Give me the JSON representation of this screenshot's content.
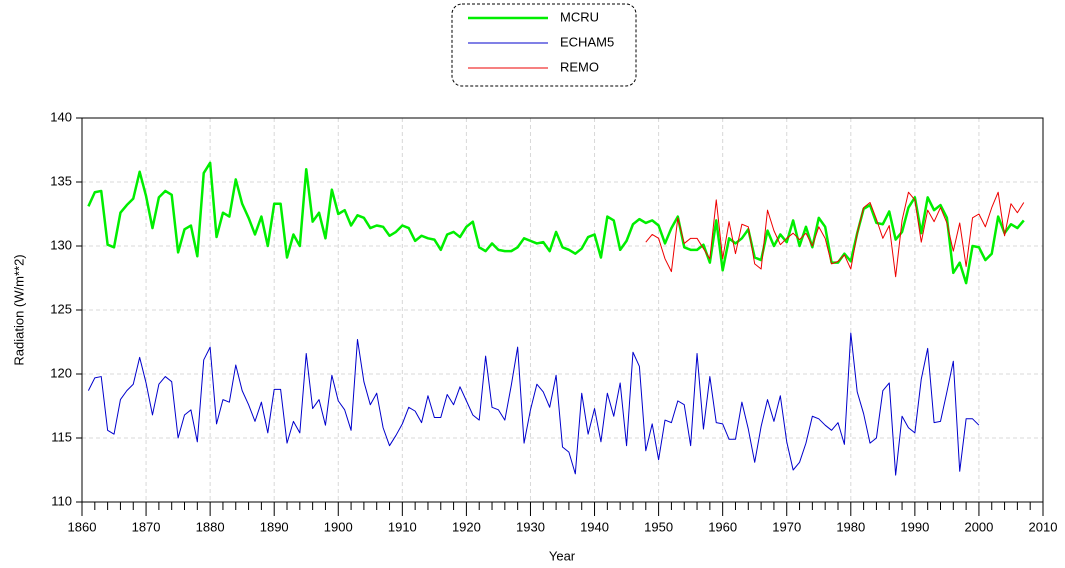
{
  "chart_data": {
    "type": "line",
    "x_label": "Year",
    "y_label": "Radiation (W/m**2)",
    "xlim": [
      1860,
      2010
    ],
    "ylim": [
      110,
      140
    ],
    "xticks": [
      1860,
      1870,
      1880,
      1890,
      1900,
      1910,
      1920,
      1930,
      1940,
      1950,
      1960,
      1970,
      1980,
      1990,
      2000,
      2010
    ],
    "yticks": [
      110,
      115,
      120,
      125,
      130,
      135,
      140
    ],
    "grid": true,
    "legend": "top",
    "series": [
      {
        "name": "MCRU",
        "color": "#00ee00",
        "line_width": 2.5,
        "x": [
          1861,
          1862,
          1863,
          1864,
          1865,
          1866,
          1867,
          1868,
          1869,
          1870,
          1871,
          1872,
          1873,
          1874,
          1875,
          1876,
          1877,
          1878,
          1879,
          1880,
          1881,
          1882,
          1883,
          1884,
          1885,
          1886,
          1887,
          1888,
          1889,
          1890,
          1891,
          1892,
          1893,
          1894,
          1895,
          1896,
          1897,
          1898,
          1899,
          1900,
          1901,
          1902,
          1903,
          1904,
          1905,
          1906,
          1907,
          1908,
          1909,
          1910,
          1911,
          1912,
          1913,
          1914,
          1915,
          1916,
          1917,
          1918,
          1919,
          1920,
          1921,
          1922,
          1923,
          1924,
          1925,
          1926,
          1927,
          1928,
          1929,
          1930,
          1931,
          1932,
          1933,
          1934,
          1935,
          1936,
          1937,
          1938,
          1939,
          1940,
          1941,
          1942,
          1943,
          1944,
          1945,
          1946,
          1947,
          1948,
          1949,
          1950,
          1951,
          1952,
          1953,
          1954,
          1955,
          1956,
          1957,
          1958,
          1959,
          1960,
          1961,
          1962,
          1963,
          1964,
          1965,
          1966,
          1967,
          1968,
          1969,
          1970,
          1971,
          1972,
          1973,
          1974,
          1975,
          1976,
          1977,
          1978,
          1979,
          1980,
          1981,
          1982,
          1983,
          1984,
          1985,
          1986,
          1987,
          1988,
          1989,
          1990,
          1991,
          1992,
          1993,
          1994,
          1995,
          1996,
          1997,
          1998,
          1999,
          2000,
          2001,
          2002,
          2003,
          2004,
          2005,
          2006,
          2007
        ],
        "values": [
          133.1,
          134.2,
          134.3,
          130.1,
          129.9,
          132.6,
          133.2,
          133.7,
          135.8,
          133.9,
          131.4,
          133.8,
          134.3,
          134.0,
          129.5,
          131.3,
          131.6,
          129.2,
          135.7,
          136.5,
          130.7,
          132.6,
          132.3,
          135.2,
          133.3,
          132.2,
          130.9,
          132.3,
          130.0,
          133.3,
          133.3,
          129.1,
          130.9,
          130.0,
          136.0,
          131.9,
          132.6,
          130.6,
          134.4,
          132.5,
          132.8,
          131.6,
          132.4,
          132.2,
          131.4,
          131.6,
          131.5,
          130.8,
          131.1,
          131.6,
          131.4,
          130.4,
          130.8,
          130.6,
          130.5,
          129.7,
          130.9,
          131.1,
          130.7,
          131.5,
          131.9,
          129.9,
          129.6,
          130.2,
          129.7,
          129.6,
          129.6,
          129.9,
          130.6,
          130.4,
          130.2,
          130.3,
          129.6,
          131.1,
          129.9,
          129.7,
          129.4,
          129.8,
          130.7,
          130.9,
          129.1,
          132.3,
          132.0,
          129.7,
          130.4,
          131.7,
          132.1,
          131.8,
          132.0,
          131.6,
          130.2,
          131.4,
          132.3,
          129.9,
          129.7,
          129.7,
          130.1,
          128.7,
          132.0,
          128.1,
          130.6,
          130.2,
          130.6,
          131.3,
          129.1,
          128.9,
          131.2,
          130.0,
          130.9,
          130.3,
          132.0,
          130.0,
          131.5,
          129.9,
          132.2,
          131.5,
          128.7,
          128.7,
          129.4,
          128.8,
          131.0,
          132.9,
          133.2,
          131.8,
          131.7,
          132.7,
          130.5,
          131.1,
          133.0,
          133.8,
          131.0,
          133.8,
          132.8,
          133.2,
          132.2,
          127.9,
          128.7,
          127.1,
          130.0,
          129.9,
          128.9,
          129.4,
          132.3,
          131.0,
          131.7,
          131.4,
          132.0
        ]
      },
      {
        "name": "ECHAM5",
        "color": "#0000cc",
        "line_width": 1,
        "x": [
          1861,
          1862,
          1863,
          1864,
          1865,
          1866,
          1867,
          1868,
          1869,
          1870,
          1871,
          1872,
          1873,
          1874,
          1875,
          1876,
          1877,
          1878,
          1879,
          1880,
          1881,
          1882,
          1883,
          1884,
          1885,
          1886,
          1887,
          1888,
          1889,
          1890,
          1891,
          1892,
          1893,
          1894,
          1895,
          1896,
          1897,
          1898,
          1899,
          1900,
          1901,
          1902,
          1903,
          1904,
          1905,
          1906,
          1907,
          1908,
          1909,
          1910,
          1911,
          1912,
          1913,
          1914,
          1915,
          1916,
          1917,
          1918,
          1919,
          1920,
          1921,
          1922,
          1923,
          1924,
          1925,
          1926,
          1927,
          1928,
          1929,
          1930,
          1931,
          1932,
          1933,
          1934,
          1935,
          1936,
          1937,
          1938,
          1939,
          1940,
          1941,
          1942,
          1943,
          1944,
          1945,
          1946,
          1947,
          1948,
          1949,
          1950,
          1951,
          1952,
          1953,
          1954,
          1955,
          1956,
          1957,
          1958,
          1959,
          1960,
          1961,
          1962,
          1963,
          1964,
          1965,
          1966,
          1967,
          1968,
          1969,
          1970,
          1971,
          1972,
          1973,
          1974,
          1975,
          1976,
          1977,
          1978,
          1979,
          1980,
          1981,
          1982,
          1983,
          1984,
          1985,
          1986,
          1987,
          1988,
          1989,
          1990,
          1991,
          1992,
          1993,
          1994,
          1995,
          1996,
          1997,
          1998,
          1999,
          2000
        ],
        "values": [
          118.7,
          119.7,
          119.8,
          115.6,
          115.3,
          118.0,
          118.7,
          119.2,
          121.3,
          119.3,
          116.8,
          119.2,
          119.8,
          119.4,
          115.0,
          116.8,
          117.2,
          114.7,
          121.1,
          122.1,
          116.1,
          118.0,
          117.8,
          120.7,
          118.7,
          117.6,
          116.3,
          117.8,
          115.4,
          118.8,
          118.8,
          114.6,
          116.3,
          115.4,
          121.6,
          117.3,
          118.0,
          116.0,
          119.9,
          117.9,
          117.2,
          115.6,
          122.7,
          119.4,
          117.6,
          118.5,
          115.8,
          114.4,
          115.2,
          116.1,
          117.4,
          117.1,
          116.2,
          118.3,
          116.6,
          116.6,
          118.4,
          117.6,
          119.0,
          117.9,
          116.8,
          116.4,
          121.4,
          117.4,
          117.2,
          116.4,
          119.1,
          122.1,
          114.6,
          117.2,
          119.2,
          118.6,
          117.4,
          119.9,
          114.3,
          113.9,
          112.2,
          118.5,
          115.3,
          117.3,
          114.7,
          118.5,
          116.7,
          119.3,
          114.4,
          121.7,
          120.6,
          114.0,
          116.1,
          113.3,
          116.4,
          116.2,
          117.9,
          117.6,
          114.4,
          121.6,
          115.7,
          119.8,
          116.2,
          116.1,
          114.9,
          114.9,
          117.8,
          115.7,
          113.1,
          115.9,
          118.0,
          116.3,
          118.3,
          114.7,
          112.5,
          113.1,
          114.6,
          116.7,
          116.5,
          116.0,
          115.6,
          116.2,
          114.5,
          123.2,
          118.6,
          116.9,
          114.6,
          115.0,
          118.7,
          119.3,
          112.1,
          116.7,
          115.8,
          115.4,
          119.6,
          122.0,
          116.2,
          116.3,
          118.6,
          121.0,
          112.4,
          116.5,
          116.5,
          116.0
        ]
      },
      {
        "name": "REMO",
        "color": "#ee0000",
        "line_width": 1,
        "x": [
          1948,
          1949,
          1950,
          1951,
          1952,
          1953,
          1954,
          1955,
          1956,
          1957,
          1958,
          1959,
          1960,
          1961,
          1962,
          1963,
          1964,
          1965,
          1966,
          1967,
          1968,
          1969,
          1970,
          1971,
          1972,
          1973,
          1974,
          1975,
          1976,
          1977,
          1978,
          1979,
          1980,
          1981,
          1982,
          1983,
          1984,
          1985,
          1986,
          1987,
          1988,
          1989,
          1990,
          1991,
          1992,
          1993,
          1994,
          1995,
          1996,
          1997,
          1998,
          1999,
          2000,
          2001,
          2002,
          2003,
          2004,
          2005,
          2006,
          2007
        ],
        "values": [
          130.3,
          130.9,
          130.6,
          129.0,
          128.0,
          132.2,
          130.2,
          130.6,
          130.6,
          129.8,
          129.0,
          133.6,
          129.0,
          131.9,
          129.4,
          131.7,
          131.5,
          128.6,
          128.2,
          132.8,
          131.2,
          130.1,
          130.6,
          131.0,
          130.5,
          131.0,
          130.0,
          131.5,
          130.6,
          128.6,
          128.8,
          129.3,
          128.2,
          131.0,
          133.0,
          133.4,
          132.1,
          130.6,
          131.6,
          127.6,
          132.0,
          134.2,
          133.6,
          130.3,
          132.8,
          131.9,
          133.0,
          131.8,
          129.6,
          131.8,
          128.4,
          132.2,
          132.5,
          131.5,
          133.0,
          134.2,
          130.8,
          133.3,
          132.6,
          133.4
        ]
      }
    ]
  }
}
